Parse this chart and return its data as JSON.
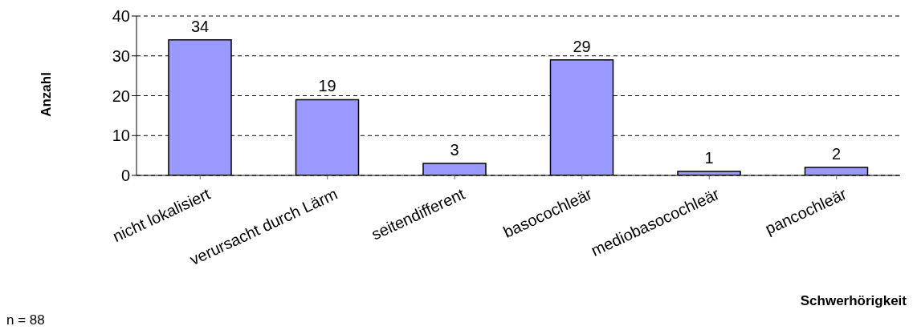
{
  "chart_data": {
    "type": "bar",
    "categories": [
      "nicht lokalisiert",
      "verursacht durch Lärm",
      "seitendifferent",
      "basocochleär",
      "mediobasocochleär",
      "pancochleär"
    ],
    "values": [
      34,
      19,
      3,
      29,
      1,
      2
    ],
    "color": "#9999ff",
    "ylim": [
      0,
      40
    ],
    "yticks": [
      0,
      10,
      20,
      30,
      40
    ],
    "grid": "y",
    "data_labels": true,
    "xlabel": "Schwerhörigkeit",
    "ylabel": "Anzahl",
    "annotations": [
      "n = 88"
    ]
  }
}
